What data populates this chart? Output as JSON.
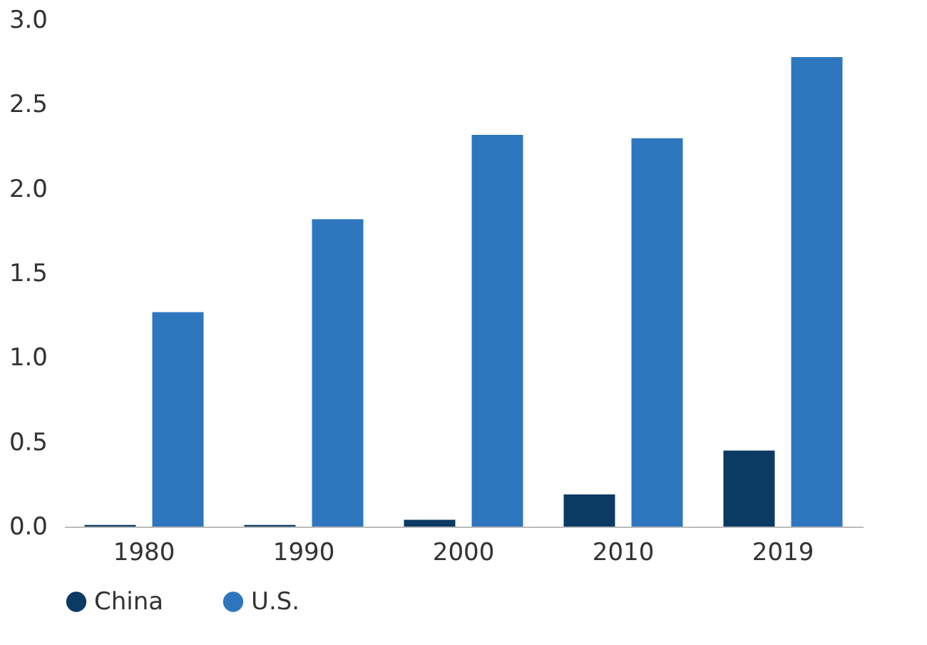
{
  "chart_data": {
    "type": "bar",
    "categories": [
      "1980",
      "1990",
      "2000",
      "2010",
      "2019"
    ],
    "series": [
      {
        "name": "China",
        "color": "#0b3a63",
        "values": [
          0.01,
          0.01,
          0.04,
          0.19,
          0.45
        ]
      },
      {
        "name": "U.S.",
        "color": "#2e77be",
        "values": [
          1.27,
          1.82,
          2.32,
          2.3,
          2.78
        ]
      }
    ],
    "ylim": [
      0,
      3
    ],
    "yticks": [
      {
        "value": 0,
        "label": "0.0"
      },
      {
        "value": 0.5,
        "label": "0.5"
      },
      {
        "value": 1,
        "label": "1.0"
      },
      {
        "value": 1.5,
        "label": "1.5"
      },
      {
        "value": 2,
        "label": "2.0"
      },
      {
        "value": 2.5,
        "label": "2.5"
      },
      {
        "value": 3,
        "label": "3.0"
      }
    ],
    "grid": false,
    "legend": "bottom"
  }
}
